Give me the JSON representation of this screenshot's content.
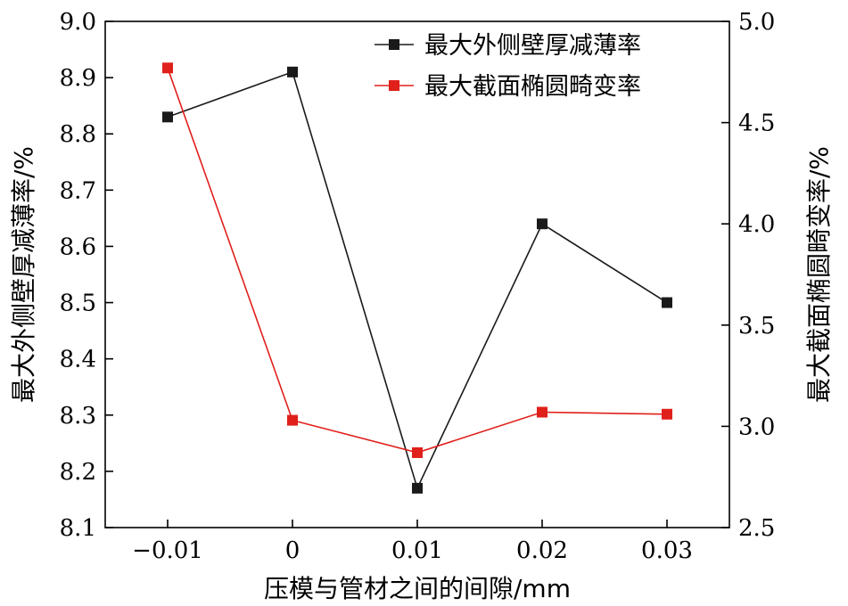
{
  "chart_data": {
    "type": "line",
    "x": [
      -0.01,
      0,
      0.01,
      0.02,
      0.03
    ],
    "x_tick_labels": [
      "−0.01",
      "0",
      "0.01",
      "0.02",
      "0.03"
    ],
    "xlim": [
      -0.015,
      0.035
    ],
    "xlabel": "压模与管材之间的间隙/mm",
    "y_left": {
      "label": "最大外侧壁厚减薄率/%",
      "lim": [
        8.1,
        9.0
      ],
      "ticks": [
        8.1,
        8.2,
        8.3,
        8.4,
        8.5,
        8.6,
        8.7,
        8.8,
        8.9,
        9.0
      ],
      "tick_labels": [
        "8.1",
        "8.2",
        "8.3",
        "8.4",
        "8.5",
        "8.6",
        "8.7",
        "8.8",
        "8.9",
        "9.0"
      ]
    },
    "y_right": {
      "label": "最大截面椭圆畸变率/%",
      "lim": [
        2.5,
        5.0
      ],
      "ticks": [
        2.5,
        3.0,
        3.5,
        4.0,
        4.5,
        5.0
      ],
      "tick_labels": [
        "2.5",
        "3.0",
        "3.5",
        "4.0",
        "4.5",
        "5.0"
      ]
    },
    "series": [
      {
        "name": "最大外侧壁厚减薄率",
        "axis": "left",
        "color": "#1a1a1a",
        "values": [
          8.83,
          8.91,
          8.17,
          8.64,
          8.5
        ]
      },
      {
        "name": "最大截面椭圆畸变率",
        "axis": "right",
        "color": "#e0201b",
        "values": [
          4.77,
          3.03,
          2.87,
          3.07,
          3.06
        ]
      }
    ],
    "legend_position": "top-right",
    "grid": false
  }
}
